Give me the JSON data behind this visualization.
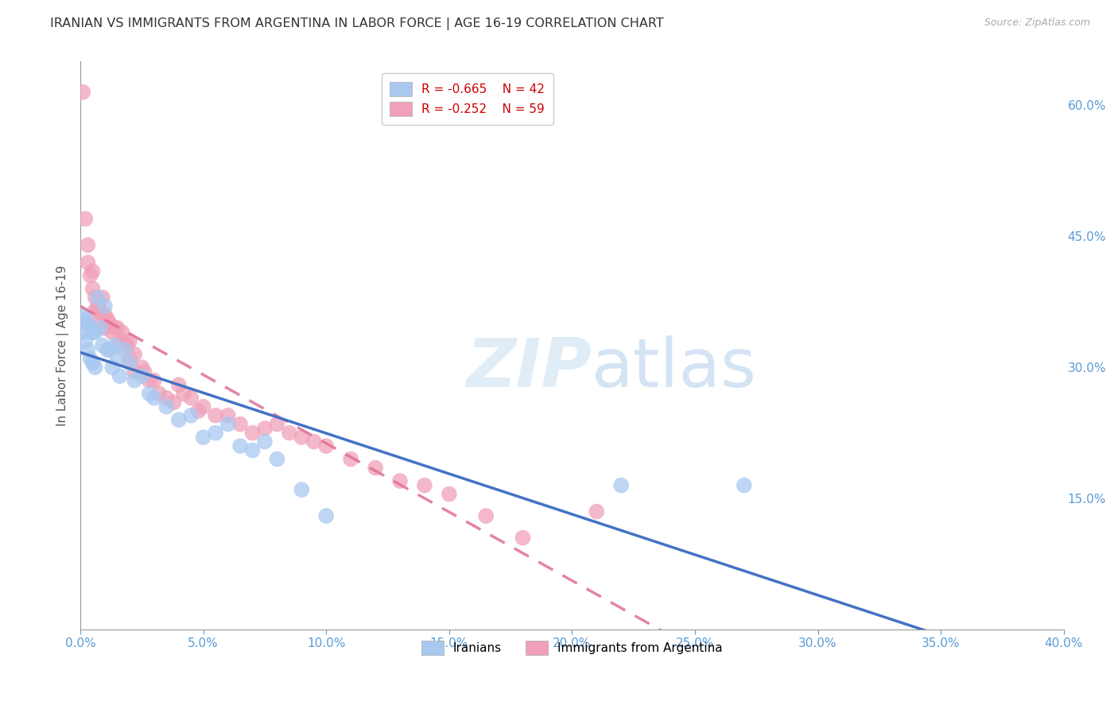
{
  "title": "IRANIAN VS IMMIGRANTS FROM ARGENTINA IN LABOR FORCE | AGE 16-19 CORRELATION CHART",
  "source": "Source: ZipAtlas.com",
  "ylabel": "In Labor Force | Age 16-19",
  "watermark_zip": "ZIP",
  "watermark_atlas": "atlas",
  "xlim": [
    0.0,
    0.4
  ],
  "ylim": [
    0.0,
    0.65
  ],
  "xticks": [
    0.0,
    0.05,
    0.1,
    0.15,
    0.2,
    0.25,
    0.3,
    0.35,
    0.4
  ],
  "yticks_right": [
    0.15,
    0.3,
    0.45,
    0.6
  ],
  "background_color": "#ffffff",
  "grid_color": "#c8c8c8",
  "iranians_color": "#a8c8f0",
  "argentina_color": "#f0a0b8",
  "iranians_line_color": "#4472c4",
  "argentina_line_color": "#e07090",
  "axis_tick_color": "#5b9bd5",
  "legend_r_iranians": "R = -0.665",
  "legend_n_iranians": "N = 42",
  "legend_r_argentina": "R = -0.252",
  "legend_n_argentina": "N = 59",
  "iranians_x": [
    0.001,
    0.001,
    0.002,
    0.002,
    0.003,
    0.003,
    0.004,
    0.004,
    0.005,
    0.005,
    0.006,
    0.006,
    0.007,
    0.008,
    0.009,
    0.01,
    0.011,
    0.012,
    0.013,
    0.014,
    0.015,
    0.016,
    0.018,
    0.02,
    0.022,
    0.025,
    0.028,
    0.03,
    0.035,
    0.04,
    0.045,
    0.05,
    0.055,
    0.06,
    0.065,
    0.07,
    0.075,
    0.08,
    0.09,
    0.1,
    0.22,
    0.27
  ],
  "iranians_y": [
    0.36,
    0.34,
    0.355,
    0.33,
    0.35,
    0.32,
    0.345,
    0.31,
    0.34,
    0.305,
    0.34,
    0.3,
    0.38,
    0.345,
    0.325,
    0.37,
    0.32,
    0.32,
    0.3,
    0.325,
    0.31,
    0.29,
    0.32,
    0.305,
    0.285,
    0.29,
    0.27,
    0.265,
    0.255,
    0.24,
    0.245,
    0.22,
    0.225,
    0.235,
    0.21,
    0.205,
    0.215,
    0.195,
    0.16,
    0.13,
    0.165,
    0.165
  ],
  "argentina_x": [
    0.001,
    0.002,
    0.003,
    0.003,
    0.004,
    0.005,
    0.005,
    0.006,
    0.006,
    0.007,
    0.007,
    0.008,
    0.009,
    0.009,
    0.01,
    0.01,
    0.011,
    0.012,
    0.013,
    0.014,
    0.015,
    0.016,
    0.017,
    0.018,
    0.019,
    0.02,
    0.02,
    0.022,
    0.022,
    0.025,
    0.026,
    0.028,
    0.03,
    0.032,
    0.035,
    0.038,
    0.04,
    0.042,
    0.045,
    0.048,
    0.05,
    0.055,
    0.06,
    0.065,
    0.07,
    0.075,
    0.08,
    0.085,
    0.09,
    0.095,
    0.1,
    0.11,
    0.12,
    0.13,
    0.14,
    0.15,
    0.165,
    0.18,
    0.21
  ],
  "argentina_y": [
    0.615,
    0.47,
    0.44,
    0.42,
    0.405,
    0.41,
    0.39,
    0.38,
    0.365,
    0.37,
    0.35,
    0.365,
    0.38,
    0.36,
    0.36,
    0.345,
    0.355,
    0.35,
    0.34,
    0.345,
    0.345,
    0.33,
    0.34,
    0.33,
    0.325,
    0.33,
    0.31,
    0.315,
    0.295,
    0.3,
    0.295,
    0.285,
    0.285,
    0.27,
    0.265,
    0.26,
    0.28,
    0.27,
    0.265,
    0.25,
    0.255,
    0.245,
    0.245,
    0.235,
    0.225,
    0.23,
    0.235,
    0.225,
    0.22,
    0.215,
    0.21,
    0.195,
    0.185,
    0.17,
    0.165,
    0.155,
    0.13,
    0.105,
    0.135
  ]
}
